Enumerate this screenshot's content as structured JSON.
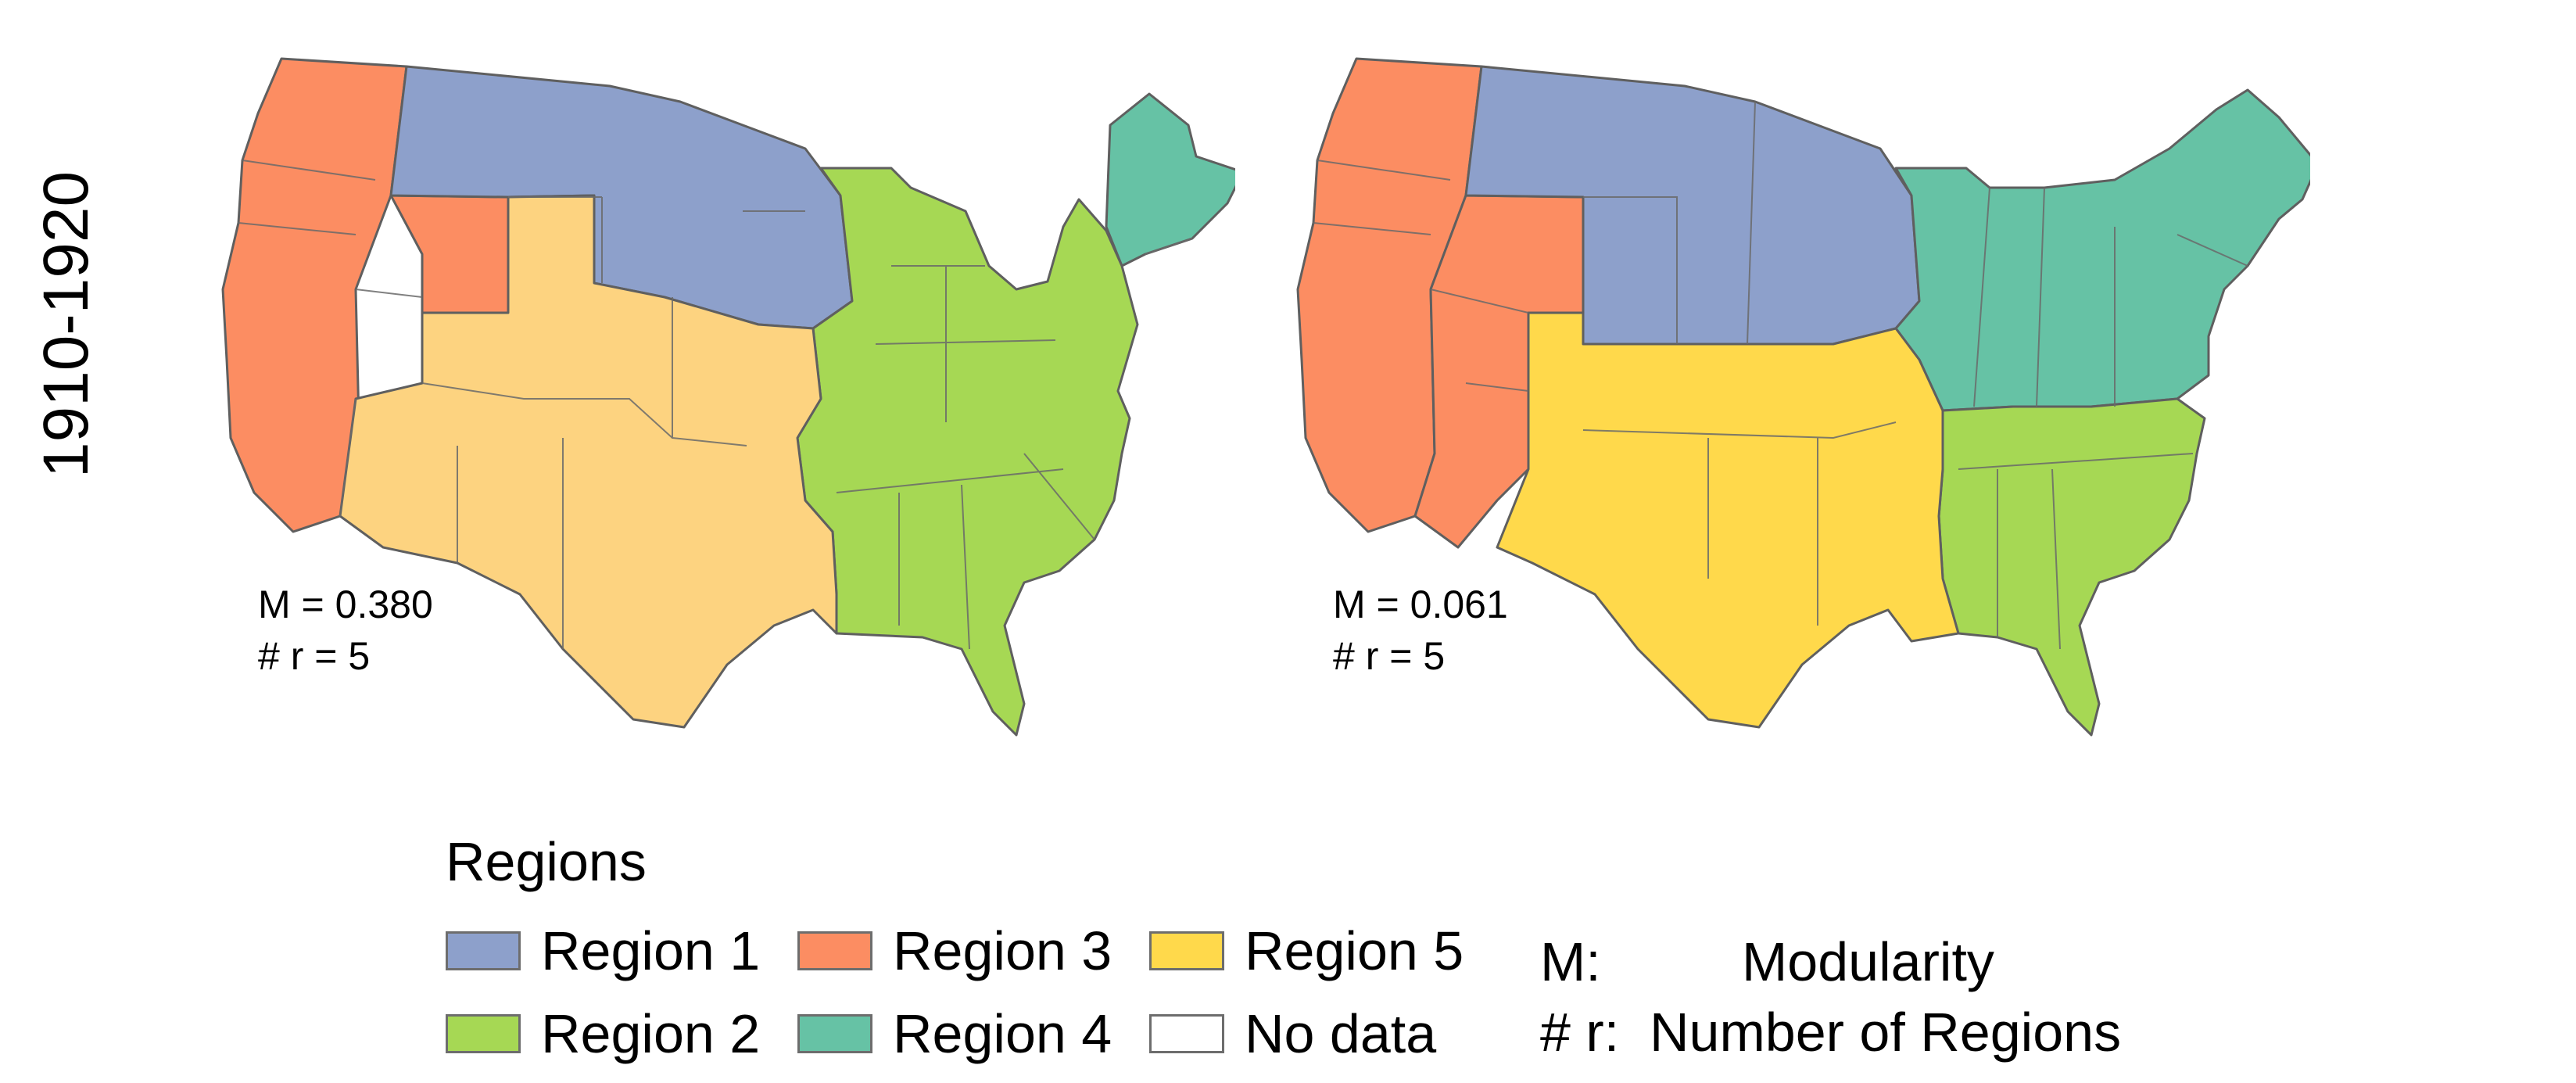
{
  "figure": {
    "period_label": "1910-1920"
  },
  "regions": [
    {
      "id": 1,
      "name": "Region 1",
      "color": "#8da0cb"
    },
    {
      "id": 2,
      "name": "Region 2",
      "color": "#a6d854"
    },
    {
      "id": 3,
      "name": "Region 3",
      "color": "#fc8d62"
    },
    {
      "id": 4,
      "name": "Region 4",
      "color": "#66c2a5"
    },
    {
      "id": 5,
      "name": "Region 5",
      "color": "#ffd92f"
    },
    {
      "id": 0,
      "name": "No data",
      "color": "#ffffff"
    }
  ],
  "maps": [
    {
      "stat_m": "M = 0.380",
      "stat_r": "# r = 5",
      "colors": {
        "r1": "#8da0cb",
        "r2": "#a6d854",
        "r3": "#fc8d62",
        "r4": "#66c2a5",
        "r5": "#fdd380"
      }
    },
    {
      "stat_m": "M = 0.061",
      "stat_r": "# r = 5",
      "colors": {
        "r1": "#8da0cb",
        "r2": "#a6d854",
        "r3": "#fc8d62",
        "r4": "#66c2a5",
        "r5": "#ffd94b"
      }
    }
  ],
  "legend": {
    "title": "Regions",
    "items": [
      {
        "label": "Region 1",
        "color": "#8da0cb"
      },
      {
        "label": "Region 3",
        "color": "#fc8d62"
      },
      {
        "label": "Region 5",
        "color": "#ffd94b"
      },
      {
        "label": "Region 2",
        "color": "#a6d854"
      },
      {
        "label": "Region 4",
        "color": "#66c2a5"
      },
      {
        "label": "No data",
        "color": "#ffffff"
      }
    ]
  },
  "key": {
    "m_abbr": "M:",
    "m_def": "Modularity",
    "r_abbr": "# r:",
    "r_def": "Number of Regions"
  }
}
